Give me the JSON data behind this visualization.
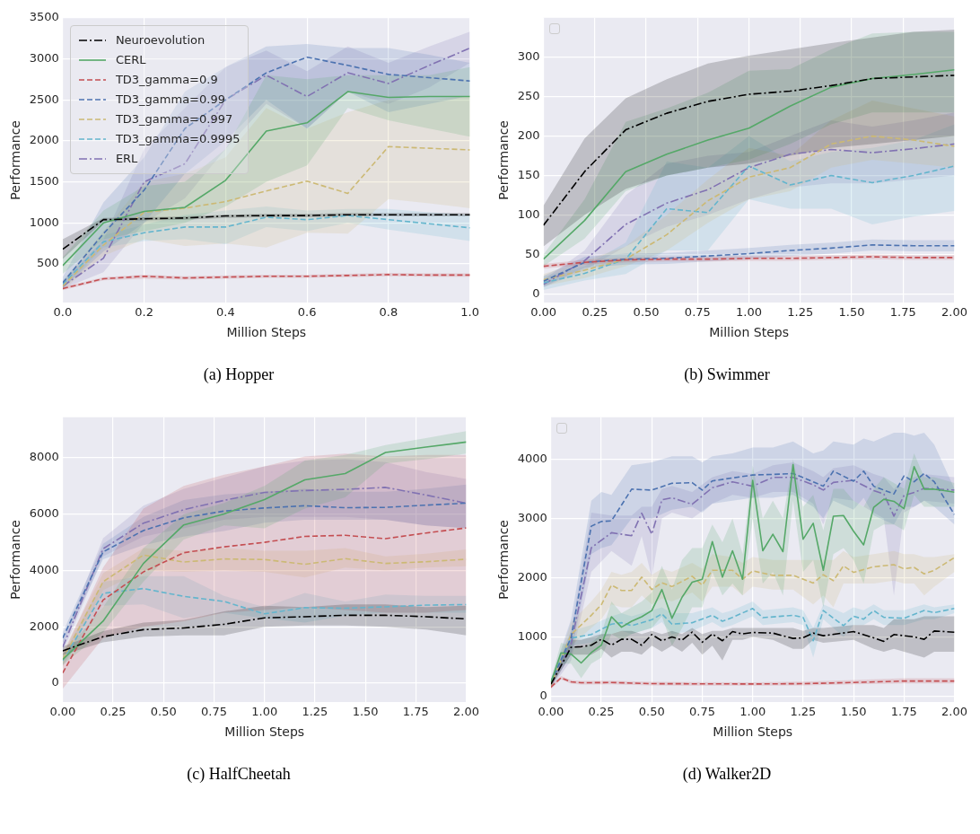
{
  "chart_data": [
    {
      "type": "line",
      "title": "(a) Hopper",
      "xlabel": "Million Steps",
      "ylabel": "Performance",
      "grid": true,
      "legend": "top left",
      "xlim": [
        0,
        1
      ],
      "ylim": [
        30,
        3500
      ],
      "xticks": [
        {
          "value": 0,
          "label": "0.0"
        },
        0.2,
        0.4,
        0.6,
        0.8,
        {
          "value": 1,
          "label": "1.0"
        }
      ],
      "yticks": [
        500,
        1000,
        1500,
        2000,
        2500,
        3000,
        3500
      ],
      "x": [
        0,
        0.1,
        0.2,
        0.3,
        0.4,
        0.5,
        0.6,
        0.7,
        0.8,
        0.9,
        1.0
      ],
      "series": [
        {
          "name": "Neuroevolution",
          "color": "#000000",
          "line_style": "dashdot",
          "values": [
            680,
            1040,
            1050,
            1060,
            1085,
            1090,
            1090,
            1100,
            1100,
            1100,
            1100
          ],
          "lower": [
            560,
            1020,
            1030,
            1040,
            1060,
            1070,
            1070,
            1080,
            1080,
            1080,
            1080
          ],
          "upper": [
            800,
            1060,
            1070,
            1080,
            1100,
            1110,
            1110,
            1120,
            1120,
            1120,
            1120
          ]
        },
        {
          "name": "CERL",
          "color": "#55a868",
          "line_style": "solid",
          "values": [
            480,
            1000,
            1140,
            1190,
            1520,
            2120,
            2220,
            2600,
            2530,
            2540,
            2540
          ],
          "lower": [
            380,
            800,
            900,
            1000,
            1200,
            1500,
            1700,
            2400,
            2250,
            2150,
            2050
          ],
          "upper": [
            580,
            1150,
            1450,
            1500,
            1900,
            2800,
            2750,
            2800,
            2800,
            2800,
            2900
          ]
        },
        {
          "name": "TD3_gamma=0.9",
          "color": "#c44e52",
          "line_style": "dashed",
          "values": [
            200,
            320,
            350,
            330,
            340,
            350,
            350,
            360,
            370,
            365,
            365
          ],
          "lower": [
            180,
            300,
            320,
            310,
            320,
            330,
            330,
            340,
            350,
            345,
            345
          ],
          "upper": [
            220,
            340,
            370,
            350,
            360,
            370,
            370,
            380,
            390,
            385,
            385
          ]
        },
        {
          "name": "TD3_gamma=0.99",
          "color": "#4c72b0",
          "line_style": "dashed",
          "values": [
            270,
            870,
            1400,
            2150,
            2500,
            2830,
            3020,
            2920,
            2810,
            2770,
            2730
          ],
          "lower": [
            200,
            650,
            1000,
            1600,
            2000,
            2500,
            2150,
            2600,
            2350,
            2450,
            2550
          ],
          "upper": [
            340,
            1250,
            1800,
            2600,
            2900,
            3150,
            3180,
            3130,
            3130,
            3050,
            2950
          ]
        },
        {
          "name": "TD3_gamma=0.997",
          "color": "#ccb974",
          "line_style": "dashed",
          "values": [
            230,
            730,
            1130,
            1180,
            1260,
            1390,
            1510,
            1360,
            1930,
            1910,
            1890
          ],
          "lower": [
            180,
            600,
            800,
            720,
            750,
            700,
            880,
            870,
            1290,
            1240,
            1180
          ],
          "upper": [
            290,
            900,
            1500,
            1600,
            1800,
            2400,
            2150,
            2350,
            2500,
            2500,
            2550
          ]
        },
        {
          "name": "TD3_gamma=0.9995",
          "color": "#64b5cd",
          "line_style": "dashed",
          "values": [
            250,
            770,
            880,
            950,
            950,
            1070,
            1040,
            1090,
            1040,
            990,
            940
          ],
          "lower": [
            200,
            700,
            780,
            800,
            740,
            950,
            900,
            1000,
            920,
            850,
            780
          ],
          "upper": [
            300,
            850,
            980,
            1100,
            1150,
            1200,
            1150,
            1170,
            1170,
            1130,
            1100
          ]
        },
        {
          "name": "ERL",
          "color": "#8172b2",
          "line_style": "dashdot",
          "values": [
            230,
            570,
            1500,
            1720,
            2500,
            2800,
            2540,
            2830,
            2700,
            2920,
            3130
          ],
          "lower": [
            200,
            400,
            1000,
            1300,
            1900,
            2450,
            2150,
            2600,
            2450,
            2650,
            2950
          ],
          "upper": [
            280,
            800,
            1900,
            2400,
            2900,
            3100,
            2850,
            3150,
            2950,
            3150,
            3330
          ]
        }
      ]
    },
    {
      "type": "line",
      "title": "(b) Swimmer",
      "xlabel": "Million Steps",
      "ylabel": "Performance",
      "grid": true,
      "legend": false,
      "xlim": [
        0,
        2
      ],
      "ylim": [
        -11,
        350
      ],
      "xticks": [
        {
          "value": 0,
          "label": "0.00"
        },
        {
          "value": 0.25,
          "label": "0.25"
        },
        {
          "value": 0.5,
          "label": "0.50"
        },
        {
          "value": 0.75,
          "label": "0.75"
        },
        {
          "value": 1,
          "label": "1.00"
        },
        {
          "value": 1.25,
          "label": "1.25"
        },
        {
          "value": 1.5,
          "label": "1.50"
        },
        {
          "value": 1.75,
          "label": "1.75"
        },
        {
          "value": 2,
          "label": "2.00"
        }
      ],
      "yticks": [
        0,
        50,
        100,
        150,
        200,
        250,
        300
      ],
      "x": [
        0,
        0.2,
        0.4,
        0.6,
        0.8,
        1.0,
        1.2,
        1.4,
        1.6,
        1.8,
        2.0
      ],
      "series": [
        {
          "color": "#000000",
          "line_style": "dashdot",
          "values": [
            87,
            155,
            208,
            229,
            244,
            253,
            257,
            264,
            273,
            275,
            277
          ],
          "lower": [
            60,
            100,
            133,
            150,
            160,
            165,
            175,
            185,
            190,
            195,
            200
          ],
          "upper": [
            112,
            197,
            248,
            272,
            292,
            302,
            310,
            318,
            325,
            332,
            335
          ]
        },
        {
          "color": "#55a868",
          "line_style": "solid",
          "values": [
            44,
            93,
            155,
            177,
            195,
            210,
            238,
            262,
            273,
            278,
            284
          ],
          "lower": [
            35,
            70,
            130,
            150,
            160,
            170,
            190,
            215,
            230,
            230,
            230
          ],
          "upper": [
            50,
            120,
            218,
            235,
            255,
            283,
            285,
            310,
            330,
            332,
            332
          ]
        },
        {
          "color": "#c44e52",
          "line_style": "dashed",
          "values": [
            35,
            40,
            43,
            44,
            44,
            45,
            45,
            46,
            47,
            46,
            46
          ],
          "lower": [
            32,
            37,
            40,
            41,
            41,
            42,
            42,
            43,
            44,
            43,
            43
          ],
          "upper": [
            38,
            43,
            46,
            47,
            47,
            48,
            48,
            49,
            50,
            49,
            49
          ]
        },
        {
          "color": "#4c72b0",
          "line_style": "dashed",
          "values": [
            16,
            40,
            44,
            45,
            48,
            51,
            55,
            58,
            62,
            61,
            61
          ],
          "lower": [
            9,
            33,
            37,
            38,
            41,
            44,
            48,
            51,
            55,
            54,
            54
          ],
          "upper": [
            23,
            47,
            51,
            52,
            55,
            58,
            62,
            65,
            69,
            68,
            68
          ]
        },
        {
          "color": "#ccb974",
          "line_style": "dashed",
          "values": [
            18,
            30,
            44,
            75,
            118,
            148,
            160,
            190,
            200,
            195,
            187
          ],
          "lower": [
            10,
            20,
            35,
            55,
            90,
            120,
            130,
            160,
            170,
            165,
            160
          ],
          "upper": [
            25,
            42,
            60,
            100,
            145,
            185,
            175,
            220,
            245,
            235,
            225
          ]
        },
        {
          "color": "#64b5cd",
          "line_style": "dashed",
          "values": [
            14,
            26,
            44,
            108,
            103,
            162,
            138,
            150,
            141,
            150,
            162
          ],
          "lower": [
            5,
            17,
            25,
            55,
            55,
            120,
            108,
            108,
            88,
            98,
            105
          ],
          "upper": [
            22,
            35,
            65,
            168,
            160,
            200,
            168,
            180,
            185,
            195,
            215
          ]
        },
        {
          "color": "#8172b2",
          "line_style": "dashdot",
          "values": [
            12,
            42,
            88,
            115,
            132,
            160,
            177,
            183,
            179,
            184,
            190
          ],
          "lower": [
            8,
            30,
            60,
            85,
            100,
            120,
            135,
            140,
            140,
            145,
            150
          ],
          "upper": [
            18,
            55,
            125,
            165,
            175,
            180,
            200,
            220,
            212,
            220,
            230
          ]
        }
      ]
    },
    {
      "type": "line",
      "title": "(c) HalfCheetah",
      "xlabel": "Million Steps",
      "ylabel": "Performance",
      "grid": true,
      "legend": "none",
      "xlim": [
        0,
        2
      ],
      "ylim": [
        -670,
        9440
      ],
      "xticks": [
        {
          "value": 0,
          "label": "0.00"
        },
        {
          "value": 0.25,
          "label": "0.25"
        },
        {
          "value": 0.5,
          "label": "0.50"
        },
        {
          "value": 0.75,
          "label": "0.75"
        },
        {
          "value": 1,
          "label": "1.00"
        },
        {
          "value": 1.25,
          "label": "1.25"
        },
        {
          "value": 1.5,
          "label": "1.50"
        },
        {
          "value": 1.75,
          "label": "1.75"
        },
        {
          "value": 2,
          "label": "2.00"
        }
      ],
      "yticks": [
        0,
        2000,
        4000,
        6000,
        8000
      ],
      "x": [
        0,
        0.2,
        0.4,
        0.6,
        0.8,
        1.0,
        1.2,
        1.4,
        1.6,
        1.8,
        2.0
      ],
      "series": [
        {
          "color": "#000000",
          "line_style": "dashdot",
          "values": [
            1150,
            1650,
            1900,
            1960,
            2090,
            2320,
            2360,
            2410,
            2410,
            2360,
            2280
          ],
          "lower": [
            1000,
            1450,
            1650,
            1700,
            1700,
            2000,
            2050,
            2050,
            2000,
            1900,
            1700
          ],
          "upper": [
            1300,
            1850,
            2150,
            2250,
            2550,
            2750,
            2700,
            2800,
            2800,
            2700,
            2750
          ]
        },
        {
          "color": "#55a868",
          "line_style": "solid",
          "values": [
            840,
            2200,
            4250,
            5620,
            6010,
            6520,
            7220,
            7440,
            8190,
            8380,
            8560
          ],
          "lower": [
            650,
            1800,
            3600,
            5100,
            5600,
            5500,
            6200,
            6600,
            7800,
            7950,
            8150
          ],
          "upper": [
            1000,
            2700,
            4800,
            6000,
            6400,
            7000,
            7900,
            8100,
            8450,
            8700,
            8950
          ]
        },
        {
          "color": "#c44e52",
          "line_style": "dashed",
          "values": [
            360,
            2950,
            3950,
            4630,
            4840,
            5000,
            5210,
            5250,
            5130,
            5330,
            5510
          ],
          "lower": [
            -200,
            1600,
            2000,
            2200,
            2500,
            2600,
            2700,
            2600,
            2500,
            2500,
            2600
          ],
          "upper": [
            1000,
            4100,
            6200,
            7000,
            7400,
            7700,
            8050,
            8150,
            8050,
            8100,
            8100
          ]
        },
        {
          "color": "#4c72b0",
          "line_style": "dashed",
          "values": [
            1600,
            4660,
            5420,
            5870,
            6110,
            6220,
            6300,
            6230,
            6240,
            6320,
            6390
          ],
          "lower": [
            1400,
            4400,
            4900,
            5200,
            5400,
            5700,
            5800,
            5800,
            5800,
            5600,
            5500
          ],
          "upper": [
            1800,
            4950,
            5900,
            6500,
            6700,
            6800,
            6900,
            6800,
            6800,
            6900,
            7050
          ]
        },
        {
          "color": "#ccb974",
          "line_style": "dashed",
          "values": [
            840,
            3600,
            4550,
            4300,
            4410,
            4390,
            4220,
            4420,
            4250,
            4310,
            4400
          ],
          "lower": [
            600,
            3300,
            4000,
            3950,
            4000,
            3950,
            3750,
            4100,
            4000,
            4100,
            4150
          ],
          "upper": [
            1100,
            3900,
            4800,
            4700,
            4800,
            4700,
            4700,
            4800,
            4500,
            4600,
            4750
          ]
        },
        {
          "color": "#64b5cd",
          "line_style": "dashed",
          "values": [
            800,
            3190,
            3360,
            3080,
            2900,
            2460,
            2680,
            2660,
            2710,
            2770,
            2790
          ],
          "lower": [
            600,
            2750,
            2800,
            2300,
            2500,
            2300,
            2150,
            2400,
            2500,
            2500,
            2500
          ],
          "upper": [
            1000,
            3600,
            3800,
            3800,
            3100,
            2700,
            3200,
            2900,
            3150,
            3100,
            3100
          ]
        },
        {
          "color": "#8172b2",
          "line_style": "dashdot",
          "values": [
            1280,
            4770,
            5680,
            6160,
            6490,
            6770,
            6840,
            6880,
            6950,
            6680,
            6390
          ],
          "lower": [
            1100,
            4500,
            5200,
            5500,
            5800,
            5900,
            5900,
            5900,
            5800,
            5600,
            5500
          ],
          "upper": [
            1500,
            5150,
            6300,
            6900,
            7300,
            7700,
            7900,
            7950,
            7850,
            7500,
            7250
          ]
        }
      ]
    },
    {
      "type": "line",
      "title": "(d) Walker2D",
      "xlabel": "Million Steps",
      "ylabel": "Performance",
      "grid": true,
      "legend": false,
      "xlim": [
        0,
        2
      ],
      "ylim": [
        -100,
        4710
      ],
      "xticks": [
        {
          "value": 0,
          "label": "0.00"
        },
        {
          "value": 0.25,
          "label": "0.25"
        },
        {
          "value": 0.5,
          "label": "0.50"
        },
        {
          "value": 0.75,
          "label": "0.75"
        },
        {
          "value": 1,
          "label": "1.00"
        },
        {
          "value": 1.25,
          "label": "1.25"
        },
        {
          "value": 1.5,
          "label": "1.50"
        },
        {
          "value": 1.75,
          "label": "1.75"
        },
        {
          "value": 2,
          "label": "2.00"
        }
      ],
      "yticks": [
        0,
        1000,
        2000,
        3000,
        4000
      ],
      "series": [
        {
          "color": "#000000",
          "line_style": "dashdot",
          "x": [
            0,
            0.1,
            0.15,
            0.2,
            0.25,
            0.3,
            0.35,
            0.4,
            0.45,
            0.5,
            0.55,
            0.6,
            0.65,
            0.7,
            0.75,
            0.8,
            0.85,
            0.9,
            0.95,
            1.0,
            1.1,
            1.2,
            1.25,
            1.3,
            1.35,
            1.5,
            1.6,
            1.65,
            1.7,
            1.8,
            1.85,
            1.9,
            2.0
          ],
          "values": [
            200,
            825,
            835,
            860,
            960,
            860,
            960,
            960,
            860,
            1040,
            935,
            1000,
            945,
            1080,
            910,
            1050,
            935,
            1090,
            1050,
            1075,
            1065,
            975,
            985,
            1065,
            1020,
            1090,
            985,
            925,
            1040,
            1000,
            960,
            1100,
            1080
          ],
          "lower": [
            150,
            700,
            700,
            700,
            800,
            650,
            750,
            750,
            700,
            850,
            750,
            850,
            750,
            900,
            700,
            850,
            600,
            950,
            950,
            1000,
            950,
            800,
            800,
            950,
            900,
            950,
            800,
            750,
            800,
            700,
            650,
            750,
            750
          ],
          "upper": [
            250,
            950,
            950,
            1000,
            1050,
            1050,
            1100,
            1100,
            1050,
            1100,
            1050,
            1100,
            1050,
            1150,
            1050,
            1100,
            1100,
            1150,
            1150,
            1150,
            1150,
            1150,
            1100,
            1150,
            1150,
            1200,
            1200,
            1150,
            1300,
            1300,
            1350,
            1350,
            1350
          ]
        },
        {
          "color": "#55a868",
          "line_style": "solid",
          "x": [
            0,
            0.05,
            0.1,
            0.15,
            0.2,
            0.25,
            0.3,
            0.35,
            0.4,
            0.45,
            0.5,
            0.55,
            0.6,
            0.65,
            0.7,
            0.75,
            0.8,
            0.85,
            0.9,
            0.95,
            1.0,
            1.05,
            1.1,
            1.15,
            1.2,
            1.25,
            1.3,
            1.35,
            1.4,
            1.45,
            1.5,
            1.55,
            1.6,
            1.65,
            1.7,
            1.75,
            1.8,
            1.85,
            1.9,
            1.95,
            2.0
          ],
          "values": [
            230,
            730,
            710,
            560,
            735,
            860,
            1340,
            1165,
            1265,
            1340,
            1445,
            1800,
            1315,
            1670,
            1925,
            1975,
            2610,
            2010,
            2455,
            1975,
            3645,
            2455,
            2735,
            2440,
            3910,
            2650,
            2920,
            2125,
            3040,
            3050,
            2785,
            2555,
            3190,
            3325,
            3290,
            3165,
            3875,
            3495,
            3495,
            3470,
            3445
          ],
          "lower": [
            180,
            550,
            550,
            300,
            550,
            650,
            1050,
            950,
            1050,
            1100,
            1150,
            1350,
            850,
            1150,
            1500,
            1500,
            2100,
            1700,
            1900,
            1700,
            3000,
            1900,
            2100,
            1700,
            3300,
            2100,
            2300,
            1500,
            2400,
            2500,
            2300,
            1900,
            2800,
            2900,
            2900,
            2800,
            3400,
            3200,
            3200,
            3200,
            3200
          ],
          "upper": [
            280,
            900,
            850,
            800,
            900,
            1050,
            1600,
            1400,
            1500,
            1600,
            1750,
            2200,
            1800,
            2300,
            2500,
            2500,
            2900,
            2600,
            3000,
            2400,
            3900,
            3000,
            3300,
            3000,
            4000,
            3200,
            3400,
            2800,
            3500,
            3500,
            3300,
            3200,
            3500,
            3700,
            3600,
            3500,
            4100,
            3700,
            3700,
            3650,
            3600
          ]
        },
        {
          "color": "#c44e52",
          "line_style": "dashed",
          "x": [
            0,
            0.05,
            0.1,
            0.15,
            0.3,
            0.5,
            1.0,
            1.25,
            1.5,
            1.75,
            2.0
          ],
          "values": [
            150,
            310,
            240,
            225,
            230,
            210,
            205,
            210,
            230,
            255,
            255
          ],
          "lower": [
            120,
            280,
            210,
            195,
            200,
            180,
            175,
            180,
            200,
            215,
            215
          ],
          "upper": [
            190,
            340,
            270,
            255,
            260,
            240,
            235,
            245,
            270,
            300,
            300
          ]
        },
        {
          "color": "#4c72b0",
          "line_style": "dashed",
          "x": [
            0,
            0.1,
            0.2,
            0.25,
            0.3,
            0.4,
            0.5,
            0.6,
            0.7,
            0.75,
            0.8,
            0.9,
            1.0,
            1.1,
            1.2,
            1.3,
            1.35,
            1.4,
            1.5,
            1.55,
            1.6,
            1.7,
            1.75,
            1.8,
            1.85,
            1.9,
            2.0
          ],
          "values": [
            230,
            990,
            2870,
            2950,
            2960,
            3495,
            3480,
            3595,
            3605,
            3480,
            3635,
            3685,
            3735,
            3745,
            3760,
            3620,
            3545,
            3800,
            3630,
            3800,
            3545,
            3415,
            3720,
            3620,
            3760,
            3620,
            3065
          ],
          "lower": [
            180,
            700,
            2400,
            2500,
            2550,
            3000,
            3000,
            3150,
            3200,
            3100,
            3250,
            3300,
            3350,
            3350,
            3400,
            3200,
            3000,
            3300,
            3150,
            3350,
            3050,
            2900,
            3200,
            3200,
            3300,
            3200,
            2900
          ],
          "upper": [
            280,
            1300,
            3300,
            3450,
            3400,
            3900,
            3950,
            4050,
            4050,
            3950,
            4050,
            4100,
            4200,
            4200,
            4300,
            4100,
            4150,
            4300,
            4250,
            4350,
            4300,
            4450,
            4450,
            4400,
            4450,
            4250,
            3500
          ]
        },
        {
          "color": "#ccb974",
          "line_style": "dashed",
          "x": [
            0,
            0.1,
            0.2,
            0.25,
            0.3,
            0.35,
            0.4,
            0.45,
            0.5,
            0.55,
            0.6,
            0.7,
            0.75,
            0.8,
            0.9,
            0.95,
            1.0,
            1.1,
            1.2,
            1.3,
            1.35,
            1.4,
            1.45,
            1.5,
            1.6,
            1.7,
            1.75,
            1.8,
            1.85,
            1.9,
            2.0
          ],
          "values": [
            180,
            1040,
            1365,
            1545,
            1875,
            1785,
            1785,
            2010,
            1800,
            1915,
            1850,
            2025,
            1875,
            2125,
            2125,
            1975,
            2115,
            2040,
            2040,
            1910,
            2050,
            1950,
            2200,
            2090,
            2185,
            2220,
            2150,
            2175,
            2065,
            2125,
            2340
          ],
          "lower": [
            130,
            850,
            1150,
            1300,
            1550,
            1500,
            1500,
            1700,
            1550,
            1650,
            1600,
            1750,
            1600,
            1850,
            1850,
            1700,
            1850,
            1800,
            1800,
            1550,
            1700,
            1500,
            1900,
            1900,
            1900,
            1950,
            1900,
            1900,
            1700,
            1850,
            2100
          ],
          "upper": [
            230,
            1250,
            1600,
            1800,
            2100,
            2050,
            2100,
            2250,
            2050,
            2150,
            2100,
            2250,
            2150,
            2400,
            2350,
            2250,
            2350,
            2300,
            2300,
            2300,
            2300,
            2300,
            2450,
            2350,
            2400,
            2450,
            2400,
            2400,
            2350,
            2350,
            2400
          ]
        },
        {
          "color": "#64b5cd",
          "line_style": "dashed",
          "x": [
            0,
            0.1,
            0.2,
            0.3,
            0.35,
            0.4,
            0.5,
            0.55,
            0.6,
            0.7,
            0.8,
            0.85,
            0.9,
            1.0,
            1.05,
            1.2,
            1.25,
            1.3,
            1.35,
            1.45,
            1.5,
            1.55,
            1.6,
            1.65,
            1.75,
            1.85,
            1.9,
            2.0
          ],
          "values": [
            250,
            980,
            1040,
            1215,
            1240,
            1190,
            1290,
            1390,
            1215,
            1240,
            1365,
            1265,
            1330,
            1480,
            1325,
            1365,
            1330,
            935,
            1445,
            1190,
            1350,
            1300,
            1445,
            1330,
            1315,
            1445,
            1410,
            1480
          ],
          "lower": [
            200,
            850,
            900,
            1050,
            1100,
            1050,
            1150,
            1250,
            1050,
            1100,
            1250,
            1150,
            1200,
            1350,
            1200,
            1250,
            1200,
            650,
            1300,
            1000,
            1200,
            1200,
            1300,
            1200,
            1200,
            1300,
            1300,
            1400
          ],
          "upper": [
            300,
            1100,
            1200,
            1350,
            1400,
            1350,
            1450,
            1500,
            1400,
            1400,
            1500,
            1400,
            1450,
            1600,
            1450,
            1500,
            1450,
            1150,
            1550,
            1400,
            1500,
            1450,
            1550,
            1450,
            1450,
            1550,
            1500,
            1550
          ]
        },
        {
          "color": "#8172b2",
          "line_style": "dashdot",
          "x": [
            0,
            0.1,
            0.2,
            0.3,
            0.4,
            0.45,
            0.5,
            0.55,
            0.6,
            0.7,
            0.8,
            0.9,
            1.0,
            1.1,
            1.2,
            1.3,
            1.35,
            1.4,
            1.5,
            1.6,
            1.65,
            1.7,
            1.75,
            1.8,
            1.85,
            2.0
          ],
          "values": [
            180,
            885,
            2505,
            2760,
            2710,
            3090,
            2735,
            3315,
            3350,
            3240,
            3520,
            3620,
            3545,
            3695,
            3695,
            3570,
            3480,
            3610,
            3645,
            3470,
            3415,
            3040,
            3390,
            3440,
            3510,
            3480
          ],
          "lower": [
            130,
            600,
            2100,
            2450,
            2200,
            2700,
            2000,
            3000,
            3100,
            3000,
            3250,
            3400,
            3350,
            3450,
            3450,
            3250,
            2900,
            3350,
            3300,
            3100,
            3000,
            1700,
            3100,
            3200,
            3300,
            3250
          ],
          "upper": [
            230,
            1100,
            3100,
            3050,
            3050,
            3200,
            3200,
            3500,
            3550,
            3450,
            3700,
            3800,
            3750,
            3900,
            3950,
            3800,
            3700,
            3850,
            3900,
            3750,
            3700,
            3500,
            3650,
            3700,
            3750,
            3700
          ]
        }
      ]
    }
  ]
}
